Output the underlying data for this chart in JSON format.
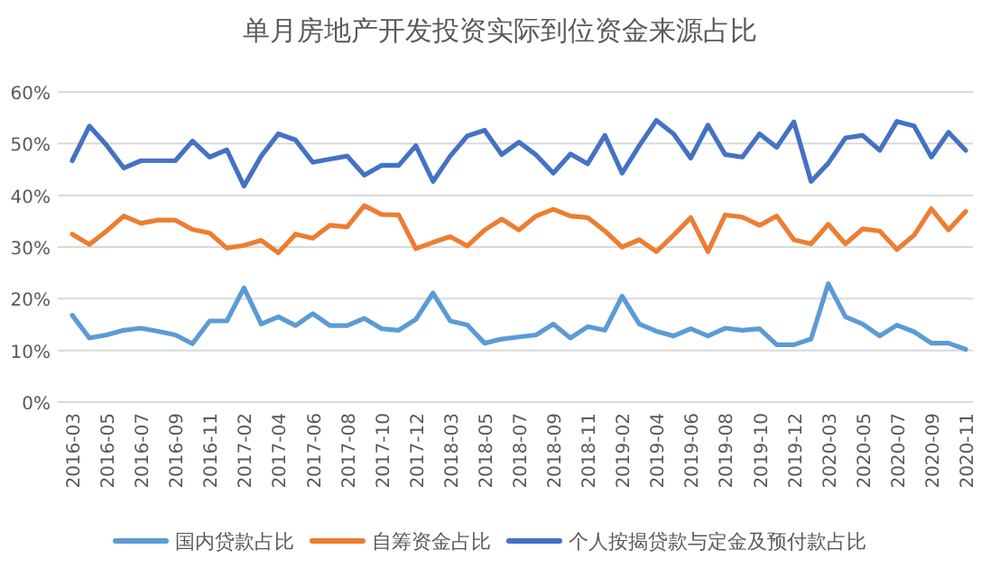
{
  "chart_data": {
    "type": "line",
    "title": "单月房地产开发投资实际到位资金来源占比",
    "categories": [
      "2016-03",
      null,
      "2016-05",
      null,
      "2016-07",
      null,
      "2016-09",
      null,
      "2016-11",
      null,
      "2017-02",
      null,
      "2017-04",
      null,
      "2017-06",
      null,
      "2017-08",
      null,
      "2017-10",
      null,
      "2017-12",
      null,
      "2018-03",
      null,
      "2018-05",
      null,
      "2018-07",
      null,
      "2018-09",
      null,
      "2018-11",
      null,
      "2019-02",
      null,
      "2019-04",
      null,
      "2019-06",
      null,
      "2019-08",
      null,
      "2019-10",
      null,
      "2019-12",
      null,
      "2020-03",
      null,
      "2020-05",
      null,
      "2020-07",
      null,
      "2020-09",
      null,
      "2020-11"
    ],
    "series": [
      {
        "name": "国内贷款占比",
        "color": "#5b9bd5",
        "values": [
          16.8,
          12.4,
          13.0,
          13.9,
          14.3,
          13.7,
          13.0,
          11.3,
          15.7,
          15.7,
          22.1,
          15.1,
          16.5,
          14.8,
          17.1,
          14.8,
          14.8,
          16.2,
          14.2,
          13.9,
          16.0,
          21.1,
          15.7,
          14.9,
          11.4,
          12.2,
          12.6,
          13.0,
          15.1,
          12.4,
          14.6,
          13.9,
          20.5,
          15.1,
          13.7,
          12.8,
          14.2,
          12.8,
          14.3,
          13.9,
          14.2,
          11.1,
          11.1,
          12.2,
          22.9,
          16.5,
          15.1,
          12.8,
          14.9,
          13.6,
          11.4,
          11.4,
          10.2
        ]
      },
      {
        "name": "自筹资金占比",
        "color": "#ed7d31",
        "values": [
          32.5,
          30.5,
          33.1,
          36.0,
          34.6,
          35.2,
          35.2,
          33.4,
          32.7,
          29.8,
          30.3,
          31.3,
          28.9,
          32.5,
          31.7,
          34.2,
          33.9,
          38.0,
          36.3,
          36.2,
          29.7,
          30.9,
          32.0,
          30.2,
          33.3,
          35.4,
          33.3,
          36.0,
          37.3,
          36.0,
          35.7,
          33.1,
          30.0,
          31.4,
          29.1,
          32.3,
          35.7,
          29.1,
          36.2,
          35.8,
          34.2,
          36.0,
          31.4,
          30.6,
          34.4,
          30.6,
          33.5,
          33.1,
          29.5,
          32.3,
          37.4,
          33.3,
          36.9
        ]
      },
      {
        "name": "个人按揭贷款与定金及预付款占比",
        "color": "#4472c4",
        "values": [
          46.7,
          53.4,
          49.7,
          45.3,
          46.7,
          46.7,
          46.7,
          50.5,
          47.4,
          48.8,
          41.8,
          47.6,
          51.9,
          50.7,
          46.4,
          47.0,
          47.6,
          43.9,
          45.8,
          45.8,
          49.6,
          42.7,
          47.6,
          51.5,
          52.6,
          47.9,
          50.3,
          47.8,
          44.3,
          48.0,
          46.1,
          51.6,
          44.3,
          49.6,
          54.5,
          51.9,
          47.2,
          53.6,
          47.9,
          47.4,
          51.9,
          49.3,
          54.2,
          42.7,
          46.2,
          51.1,
          51.6,
          48.7,
          54.3,
          53.4,
          47.4,
          52.2,
          48.7
        ]
      }
    ],
    "ylim": [
      0,
      60
    ],
    "yticks": [
      {
        "value": 0,
        "label": "0%"
      },
      {
        "value": 10,
        "label": "10%"
      },
      {
        "value": 20,
        "label": "20%"
      },
      {
        "value": 30,
        "label": "30%"
      },
      {
        "value": 40,
        "label": "40%"
      },
      {
        "value": 50,
        "label": "50%"
      },
      {
        "value": 60,
        "label": "60%"
      }
    ],
    "grid": "y",
    "legend": "bottom"
  }
}
